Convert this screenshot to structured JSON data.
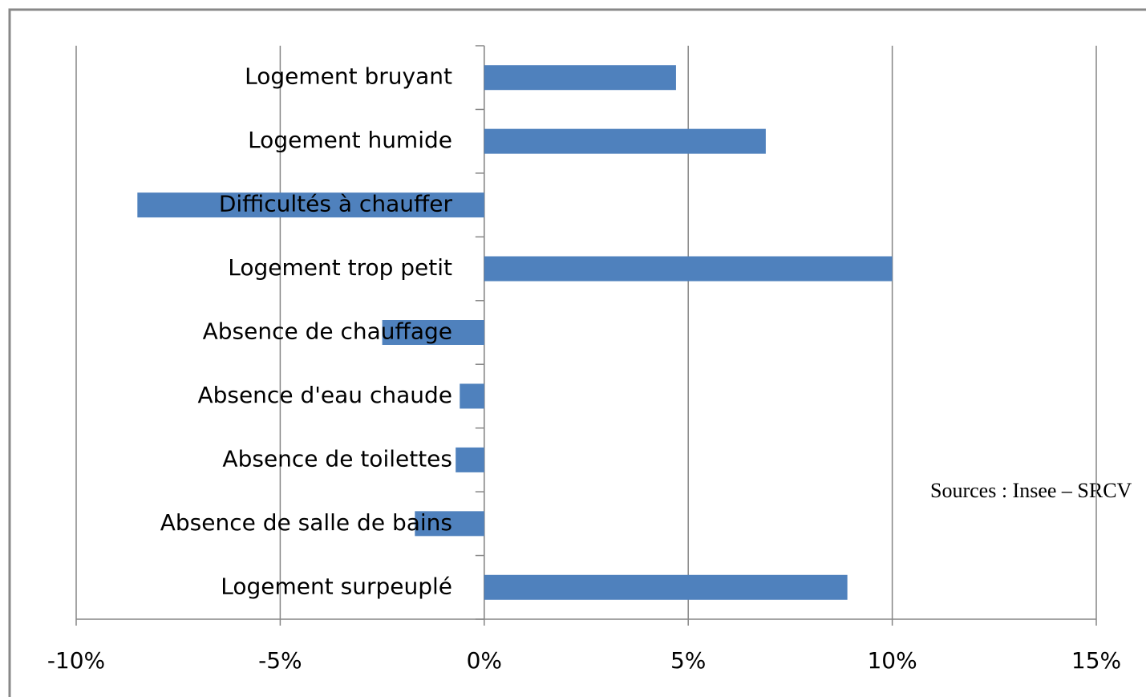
{
  "chart_data": {
    "type": "bar",
    "orientation": "horizontal",
    "categories": [
      "Logement bruyant",
      "Logement humide",
      "Difficultés à chauffer",
      "Logement trop petit",
      "Absence de chauffage",
      "Absence d'eau chaude",
      "Absence de toilettes",
      "Absence de salle de bains",
      "Logement surpeuplé"
    ],
    "values": [
      0.047,
      0.069,
      -0.085,
      0.1,
      -0.025,
      -0.006,
      -0.007,
      -0.017,
      0.089
    ],
    "color": "#4f81bd",
    "xlim": [
      -0.1,
      0.15
    ],
    "xticks": [
      {
        "value": -0.1,
        "label": "-10%"
      },
      {
        "value": -0.05,
        "label": "-5%"
      },
      {
        "value": 0,
        "label": "0%"
      },
      {
        "value": 0.05,
        "label": "5%"
      },
      {
        "value": 0.1,
        "label": "10%"
      },
      {
        "value": 0.15,
        "label": "15%"
      }
    ],
    "grid": true,
    "annotation": "Sources : Insee – SRCV"
  }
}
